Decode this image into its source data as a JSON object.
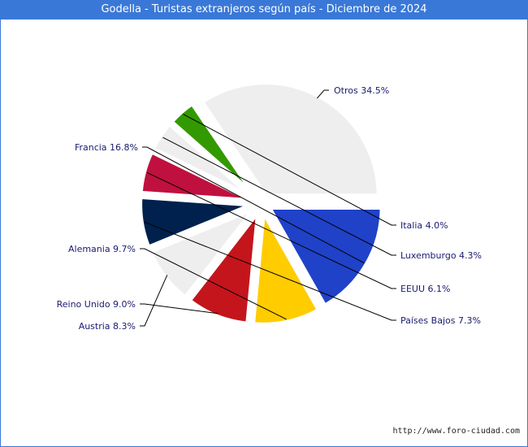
{
  "chart_data": {
    "type": "pie",
    "title": "Godella - Turistas extranjeros según país - Diciembre de 2024",
    "slices": [
      {
        "label": "Otros",
        "value": 34.5,
        "display": "Otros 34.5%",
        "color": "#eeeeee"
      },
      {
        "label": "Italia",
        "value": 4.0,
        "display": "Italia 4.0%",
        "color": "#339900"
      },
      {
        "label": "Luxemburgo",
        "value": 4.3,
        "display": "Luxemburgo 4.3%",
        "color": "#eeeeee"
      },
      {
        "label": "EEUU",
        "value": 6.1,
        "display": "EEUU 6.1%",
        "color": "#c0103f"
      },
      {
        "label": "Países Bajos",
        "value": 7.3,
        "display": "Países Bajos 7.3%",
        "color": "#00214d"
      },
      {
        "label": "Austria",
        "value": 8.3,
        "display": "Austria 8.3%",
        "color": "#eeeeee"
      },
      {
        "label": "Reino Unido",
        "value": 9.0,
        "display": "Reino Unido 9.0%",
        "color": "#c4151c"
      },
      {
        "label": "Alemania",
        "value": 9.7,
        "display": "Alemania 9.7%",
        "color": "#ffcc00"
      },
      {
        "label": "Francia",
        "value": 16.8,
        "display": "Francia 16.8%",
        "color": "#1f42c8"
      }
    ]
  },
  "footer": {
    "url": "http://www.foro-ciudad.com"
  }
}
